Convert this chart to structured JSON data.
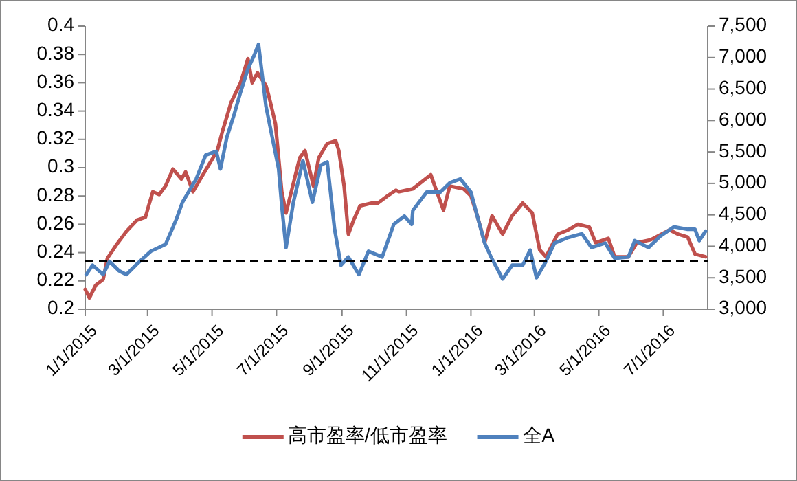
{
  "chart_data": {
    "type": "line",
    "xlim": [
      "2015-01-01",
      "2016-08-12"
    ],
    "xticks": [
      {
        "value": "2015-01-01",
        "label": "1/1/2015"
      },
      {
        "value": "2015-03-01",
        "label": "3/1/2015"
      },
      {
        "value": "2015-05-01",
        "label": "5/1/2015"
      },
      {
        "value": "2015-07-01",
        "label": "7/1/2015"
      },
      {
        "value": "2015-09-01",
        "label": "9/1/2015"
      },
      {
        "value": "2015-11-01",
        "label": "11/1/2015"
      },
      {
        "value": "2016-01-01",
        "label": "1/1/2016"
      },
      {
        "value": "2016-03-01",
        "label": "3/1/2016"
      },
      {
        "value": "2016-05-01",
        "label": "5/1/2016"
      },
      {
        "value": "2016-07-01",
        "label": "7/1/2016"
      }
    ],
    "ylim": [
      0.2,
      0.4
    ],
    "yticks": [
      0.2,
      0.22,
      0.24,
      0.26,
      0.28,
      0.3,
      0.32,
      0.34,
      0.36,
      0.38,
      0.4
    ],
    "y2lim": [
      3000,
      7500
    ],
    "y2ticks": [
      {
        "value": 3000,
        "label": "3,000"
      },
      {
        "value": 3500,
        "label": "3,500"
      },
      {
        "value": 4000,
        "label": "4,000"
      },
      {
        "value": 4500,
        "label": "4,500"
      },
      {
        "value": 5000,
        "label": "5,000"
      },
      {
        "value": 5500,
        "label": "5,500"
      },
      {
        "value": 6000,
        "label": "6,000"
      },
      {
        "value": 6500,
        "label": "6,500"
      },
      {
        "value": 7000,
        "label": "7,000"
      },
      {
        "value": 7500,
        "label": "7,500"
      }
    ],
    "grid": false,
    "legend": "bottom",
    "marker": "none",
    "line_style": "solid",
    "ref_lines": [
      {
        "axis": "y",
        "value": 0.234,
        "color": "#000000",
        "line_style": "dashed"
      }
    ],
    "series": [
      {
        "name": "高市盈率/低市盈率",
        "color": "#c0504d",
        "axis": "y",
        "x": [
          "2015-01-01",
          "2015-01-05",
          "2015-01-11",
          "2015-01-18",
          "2015-01-22",
          "2015-01-31",
          "2015-02-09",
          "2015-02-19",
          "2015-02-27",
          "2015-03-02",
          "2015-03-06",
          "2015-03-12",
          "2015-03-18",
          "2015-03-25",
          "2015-04-02",
          "2015-04-06",
          "2015-04-13",
          "2015-04-20",
          "2015-04-28",
          "2015-05-06",
          "2015-05-11",
          "2015-05-19",
          "2015-05-28",
          "2015-06-04",
          "2015-06-08",
          "2015-06-13",
          "2015-06-21",
          "2015-06-24",
          "2015-06-30",
          "2015-07-06",
          "2015-07-10",
          "2015-07-15",
          "2015-07-23",
          "2015-07-28",
          "2015-08-05",
          "2015-08-10",
          "2015-08-18",
          "2015-08-26",
          "2015-08-29",
          "2015-09-03",
          "2015-09-07",
          "2015-09-12",
          "2015-09-18",
          "2015-09-29",
          "2015-10-05",
          "2015-10-14",
          "2015-10-22",
          "2015-10-25",
          "2015-11-07",
          "2015-11-24",
          "2015-12-06",
          "2015-12-12",
          "2015-12-25",
          "2016-01-01",
          "2016-01-07",
          "2016-01-14",
          "2016-01-21",
          "2016-01-31",
          "2016-02-09",
          "2016-02-19",
          "2016-02-28",
          "2016-03-06",
          "2016-03-12",
          "2016-03-23",
          "2016-04-02",
          "2016-04-11",
          "2016-04-22",
          "2016-04-28",
          "2016-05-10",
          "2016-05-16",
          "2016-05-29",
          "2016-06-06",
          "2016-06-19",
          "2016-07-07",
          "2016-07-15",
          "2016-07-24",
          "2016-07-31",
          "2016-08-10"
        ],
        "values": [
          0.214,
          0.208,
          0.217,
          0.221,
          0.236,
          0.246,
          0.255,
          0.263,
          0.265,
          0.273,
          0.283,
          0.281,
          0.287,
          0.299,
          0.292,
          0.297,
          0.283,
          0.292,
          0.302,
          0.312,
          0.326,
          0.346,
          0.36,
          0.377,
          0.36,
          0.367,
          0.358,
          0.35,
          0.331,
          0.283,
          0.268,
          0.283,
          0.307,
          0.312,
          0.287,
          0.307,
          0.317,
          0.319,
          0.312,
          0.287,
          0.253,
          0.263,
          0.273,
          0.275,
          0.275,
          0.28,
          0.284,
          0.283,
          0.285,
          0.295,
          0.27,
          0.287,
          0.285,
          0.28,
          0.266,
          0.247,
          0.266,
          0.253,
          0.266,
          0.275,
          0.268,
          0.242,
          0.237,
          0.253,
          0.256,
          0.26,
          0.258,
          0.247,
          0.25,
          0.237,
          0.237,
          0.247,
          0.249,
          0.256,
          0.253,
          0.251,
          0.239,
          0.237
        ]
      },
      {
        "name": "全A",
        "color": "#4f81bd",
        "axis": "y2",
        "x": [
          "2015-01-02",
          "2015-01-08",
          "2015-01-18",
          "2015-01-24",
          "2015-02-02",
          "2015-02-09",
          "2015-02-19",
          "2015-03-04",
          "2015-03-18",
          "2015-03-28",
          "2015-04-03",
          "2015-04-16",
          "2015-04-25",
          "2015-05-05",
          "2015-05-09",
          "2015-05-15",
          "2015-05-22",
          "2015-05-28",
          "2015-06-04",
          "2015-06-10",
          "2015-06-14",
          "2015-06-21",
          "2015-06-27",
          "2015-07-03",
          "2015-07-06",
          "2015-07-10",
          "2015-07-17",
          "2015-07-26",
          "2015-08-04",
          "2015-08-12",
          "2015-08-18",
          "2015-08-25",
          "2015-08-31",
          "2015-09-07",
          "2015-09-17",
          "2015-09-26",
          "2015-10-09",
          "2015-10-20",
          "2015-10-30",
          "2015-11-06",
          "2015-11-07",
          "2015-11-20",
          "2015-12-03",
          "2015-12-12",
          "2015-12-22",
          "2016-01-01",
          "2016-01-07",
          "2016-01-14",
          "2016-01-20",
          "2016-01-31",
          "2016-02-09",
          "2016-02-19",
          "2016-02-26",
          "2016-03-03",
          "2016-03-12",
          "2016-03-20",
          "2016-04-02",
          "2016-04-15",
          "2016-04-24",
          "2016-05-07",
          "2016-05-16",
          "2016-05-29",
          "2016-06-04",
          "2016-06-17",
          "2016-06-28",
          "2016-07-11",
          "2016-07-24",
          "2016-07-31",
          "2016-08-04",
          "2016-08-10"
        ],
        "values": [
          3550,
          3700,
          3550,
          3760,
          3610,
          3550,
          3720,
          3920,
          4030,
          4420,
          4700,
          5070,
          5450,
          5510,
          5230,
          5730,
          6100,
          6450,
          6820,
          7040,
          7210,
          6230,
          5730,
          5230,
          4640,
          3980,
          4700,
          5360,
          4700,
          5290,
          5340,
          4270,
          3700,
          3830,
          3550,
          3920,
          3830,
          4350,
          4480,
          4350,
          4570,
          4860,
          4860,
          5010,
          5070,
          4860,
          4480,
          4050,
          3830,
          3480,
          3700,
          3700,
          3940,
          3500,
          3760,
          4050,
          4140,
          4200,
          3980,
          4050,
          3810,
          3830,
          4090,
          3980,
          4160,
          4310,
          4270,
          4270,
          4090,
          4240
        ]
      }
    ]
  }
}
